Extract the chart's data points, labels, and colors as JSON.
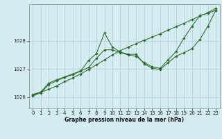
{
  "title": "Graphe pression niveau de la mer (hPa)",
  "bg_color": "#d4ecf0",
  "grid_color": "#b0cdd5",
  "line_color": "#2d6a2d",
  "xlim": [
    -0.5,
    23.5
  ],
  "ylim": [
    1025.6,
    1029.3
  ],
  "yticks": [
    1026,
    1027,
    1028
  ],
  "xticks": [
    0,
    1,
    2,
    3,
    4,
    5,
    6,
    7,
    8,
    9,
    10,
    11,
    12,
    13,
    14,
    15,
    16,
    17,
    18,
    19,
    20,
    21,
    22,
    23
  ],
  "series": [
    {
      "x": [
        0,
        1,
        2,
        3,
        4,
        5,
        6,
        7,
        8,
        9,
        10,
        11,
        12,
        13,
        14,
        15,
        16,
        17,
        18,
        19,
        20,
        21,
        22,
        23
      ],
      "y": [
        1026.1,
        1026.18,
        1026.28,
        1026.4,
        1026.55,
        1026.68,
        1026.82,
        1026.98,
        1027.15,
        1027.32,
        1027.5,
        1027.65,
        1027.78,
        1027.9,
        1028.02,
        1028.13,
        1028.25,
        1028.38,
        1028.5,
        1028.62,
        1028.75,
        1028.88,
        1029.0,
        1029.15
      ]
    },
    {
      "x": [
        0,
        1,
        2,
        3,
        4,
        5,
        6,
        7,
        8,
        9,
        10,
        11,
        12,
        13,
        14,
        15,
        16,
        17,
        18,
        19,
        20,
        21,
        22,
        23
      ],
      "y": [
        1026.05,
        1026.15,
        1026.45,
        1026.58,
        1026.7,
        1026.8,
        1026.92,
        1027.3,
        1027.55,
        1028.28,
        1027.78,
        1027.6,
        1027.52,
        1027.52,
        1027.18,
        1027.03,
        1026.98,
        1027.22,
        1027.45,
        1027.58,
        1027.72,
        1028.05,
        1028.52,
        1029.08
      ]
    },
    {
      "x": [
        0,
        1,
        2,
        3,
        4,
        5,
        6,
        7,
        8,
        9,
        10,
        11,
        12,
        13,
        14,
        15,
        16,
        17,
        18,
        19,
        20,
        21,
        22,
        23
      ],
      "y": [
        1026.08,
        1026.18,
        1026.5,
        1026.62,
        1026.72,
        1026.82,
        1026.93,
        1027.05,
        1027.38,
        1027.68,
        1027.68,
        1027.58,
        1027.5,
        1027.45,
        1027.22,
        1027.08,
        1027.02,
        1027.32,
        1027.62,
        1028.1,
        1028.52,
        1028.9,
        1028.98,
        1029.08
      ]
    }
  ]
}
